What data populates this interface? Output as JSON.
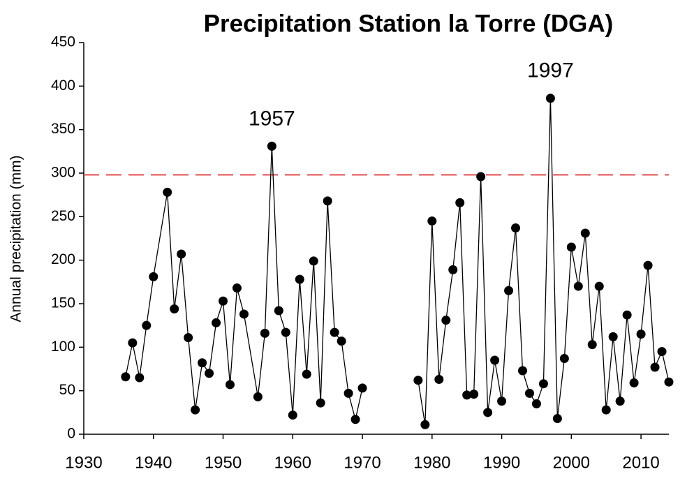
{
  "chart_data": {
    "type": "line",
    "title": "Precipitation Station la Torre (DGA)",
    "y_label": "Annual precipitation (mm)",
    "x": [
      1936,
      1937,
      1938,
      1939,
      1940,
      1942,
      1943,
      1944,
      1945,
      1946,
      1947,
      1948,
      1949,
      1950,
      1951,
      1952,
      1953,
      1955,
      1956,
      1957,
      1958,
      1959,
      1960,
      1961,
      1962,
      1963,
      1964,
      1965,
      1966,
      1967,
      1968,
      1969,
      1970,
      null,
      1978,
      1979,
      1980,
      1981,
      1982,
      1983,
      1984,
      1985,
      1986,
      1987,
      1988,
      1989,
      1990,
      1991,
      1992,
      1993,
      1994,
      1995,
      1996,
      1997,
      1998,
      1999,
      2000,
      2001,
      2002,
      2003,
      2004,
      2005,
      2006,
      2007,
      2008,
      2009,
      2010,
      2011,
      2012,
      2013,
      2014
    ],
    "series": [
      {
        "color": "#000000",
        "values": [
          66,
          105,
          65,
          125,
          181,
          278,
          144,
          207,
          111,
          28,
          82,
          70,
          128,
          153,
          57,
          168,
          138,
          43,
          116,
          331,
          142,
          117,
          22,
          178,
          69,
          199,
          36,
          268,
          117,
          107,
          47,
          17,
          53,
          null,
          62,
          11,
          245,
          63,
          131,
          189,
          266,
          45,
          46,
          296,
          25,
          85,
          38,
          165,
          237,
          73,
          47,
          35,
          58,
          386,
          18,
          87,
          215,
          170,
          231,
          103,
          170,
          28,
          112,
          38,
          137,
          59,
          115,
          194,
          77,
          95,
          60
        ]
      }
    ],
    "threshold": 298,
    "threshold_color": "#e03030",
    "annotations": [
      "1957",
      "1997"
    ],
    "xlim": [
      1930,
      2014
    ],
    "xticks": [
      1930,
      1940,
      1950,
      1960,
      1970,
      1980,
      1990,
      2000,
      2010
    ],
    "ylim": [
      0,
      450
    ],
    "yticks": [
      0,
      50,
      100,
      150,
      200,
      250,
      300,
      350,
      400,
      450
    ]
  }
}
